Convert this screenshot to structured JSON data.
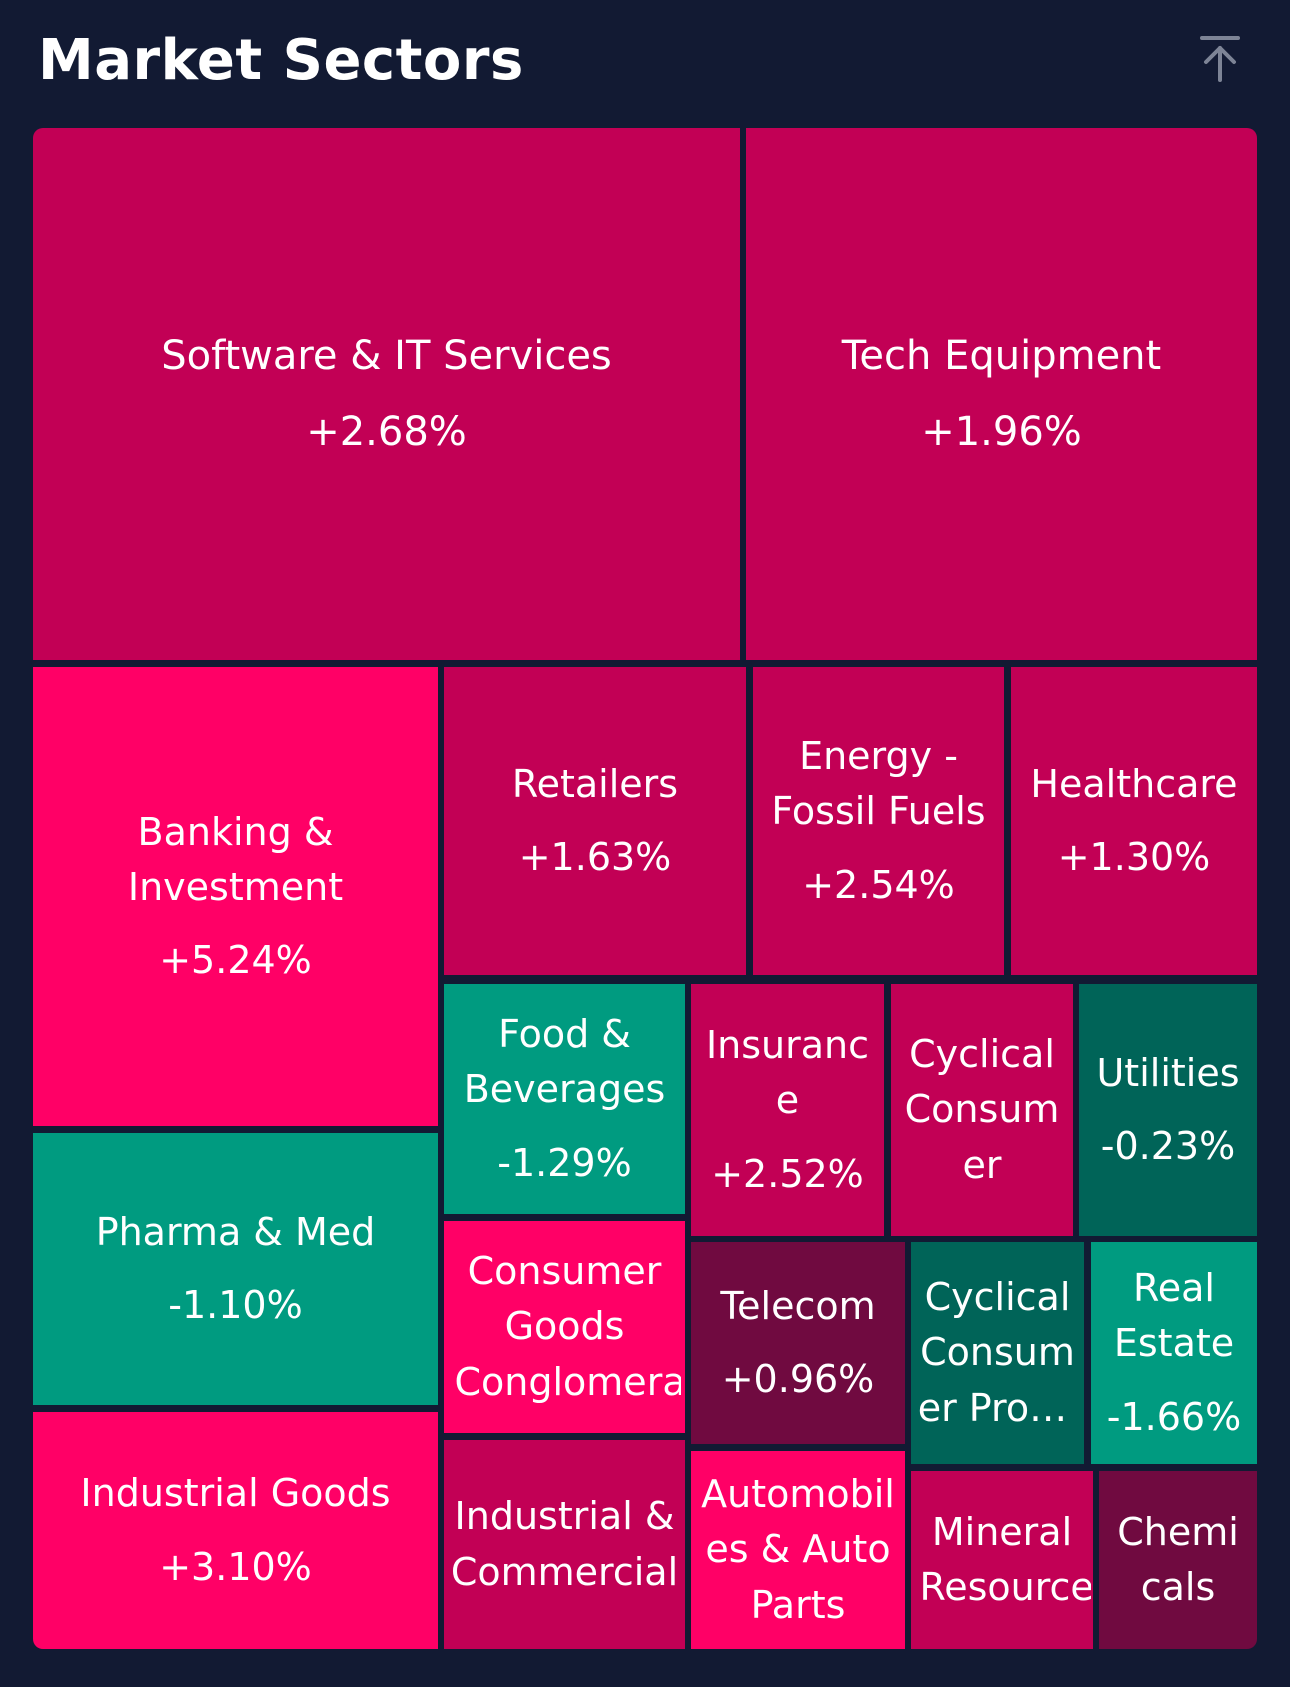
{
  "header": {
    "title": "Market Sectors",
    "collapse_icon": "arrow-up-to-line-icon"
  },
  "colors": {
    "background": "#121a33",
    "strong_up": "#ff0066",
    "up": "#c20055",
    "mild_up": "#700a40",
    "down": "#009b80",
    "dark_down": "#006458"
  },
  "sectors": [
    {
      "name": "Software & IT Services",
      "change": "+2.68%"
    },
    {
      "name": "Tech Equipment",
      "change": "+1.96%"
    },
    {
      "name": "Banking & Investment",
      "change": "+5.24%"
    },
    {
      "name": "Retailers",
      "change": "+1.63%"
    },
    {
      "name": "Energy - Fossil Fuels",
      "change": "+2.54%"
    },
    {
      "name": "Healthcare",
      "change": "+1.30%"
    },
    {
      "name": "Food & Beverages",
      "change": "-1.29%"
    },
    {
      "name": "Insurance",
      "change": "+2.52%"
    },
    {
      "name": "Cyclical Consumer",
      "change": ""
    },
    {
      "name": "Utilities",
      "change": "-0.23%"
    },
    {
      "name": "Pharma & Med",
      "change": "-1.10%"
    },
    {
      "name": "Consumer Goods Conglomerates",
      "change": ""
    },
    {
      "name": "Telecom",
      "change": "+0.96%"
    },
    {
      "name": "Cyclical Consumer Products",
      "change": ""
    },
    {
      "name": "Real Estate",
      "change": "-1.66%"
    },
    {
      "name": "Industrial Goods",
      "change": "+3.10%"
    },
    {
      "name": "Industrial & Commercial",
      "change": ""
    },
    {
      "name": "Automobiles & Auto Parts",
      "change": ""
    },
    {
      "name": "Mineral Resources",
      "change": ""
    },
    {
      "name": "Chemicals",
      "change": ""
    }
  ]
}
